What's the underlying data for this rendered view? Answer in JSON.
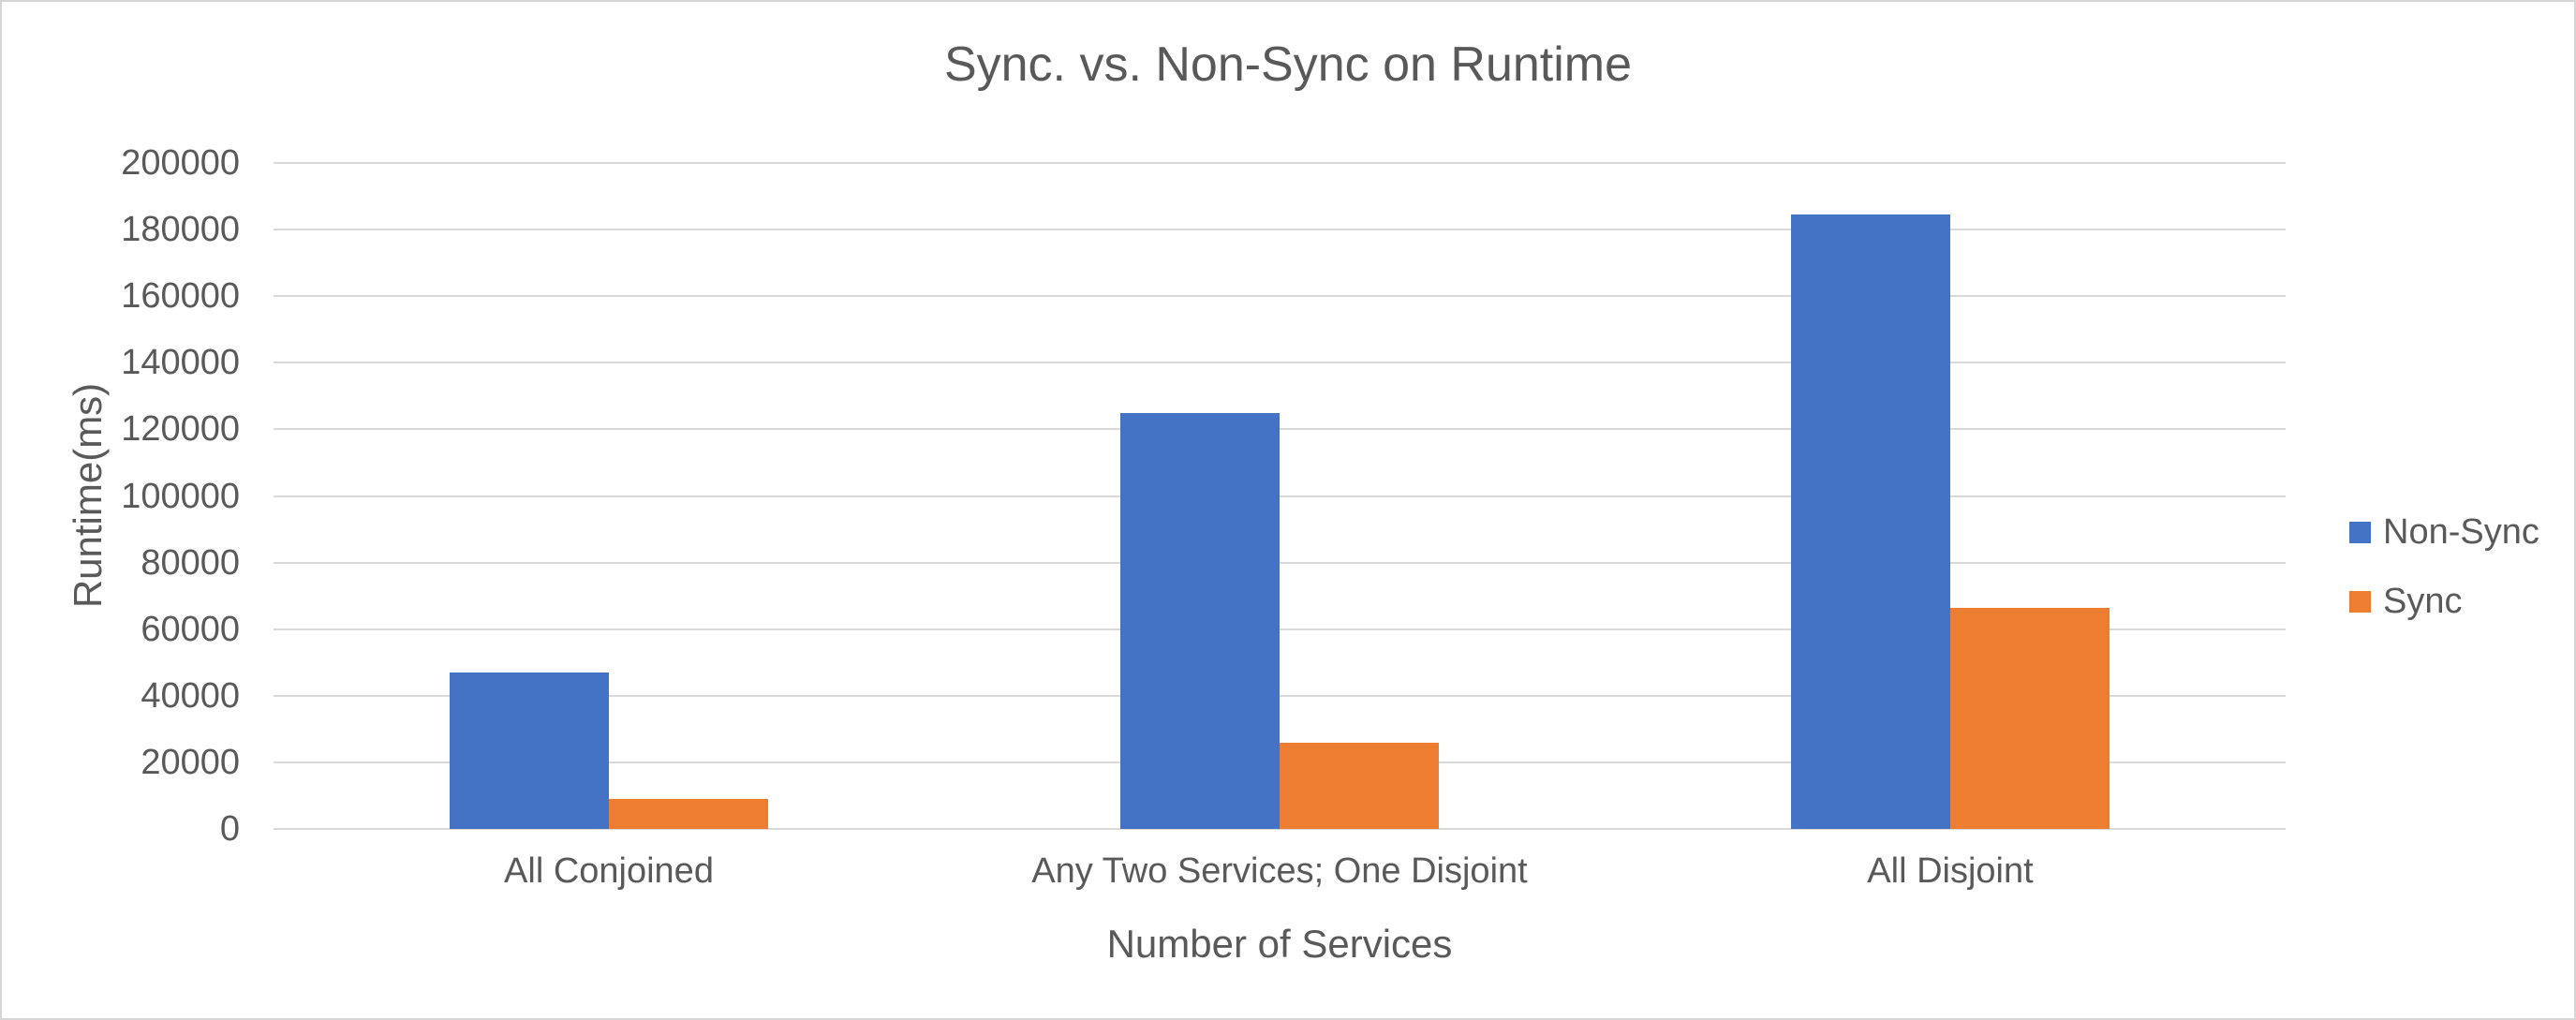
{
  "chart_data": {
    "type": "bar",
    "title": "Sync. vs. Non-Sync on Runtime",
    "xlabel": "Number of Services",
    "ylabel": "Runtime(ms)",
    "categories": [
      "All Conjoined",
      "Any Two Services; One Disjoint",
      "All Disjoint"
    ],
    "series": [
      {
        "name": "Non-Sync",
        "color": "#4472C4",
        "values": [
          47000,
          125000,
          184500
        ]
      },
      {
        "name": "Sync",
        "color": "#ED7D31",
        "values": [
          9000,
          26000,
          66500
        ]
      }
    ],
    "ylim": [
      0,
      200000
    ],
    "yticks": [
      0,
      20000,
      40000,
      60000,
      80000,
      100000,
      120000,
      140000,
      160000,
      180000,
      200000
    ],
    "grid": true,
    "legend_position": "right",
    "colors": {
      "text": "#595959",
      "grid": "#d9d9d9",
      "axis_line": "#d9d9d9",
      "background": "#ffffff"
    }
  }
}
